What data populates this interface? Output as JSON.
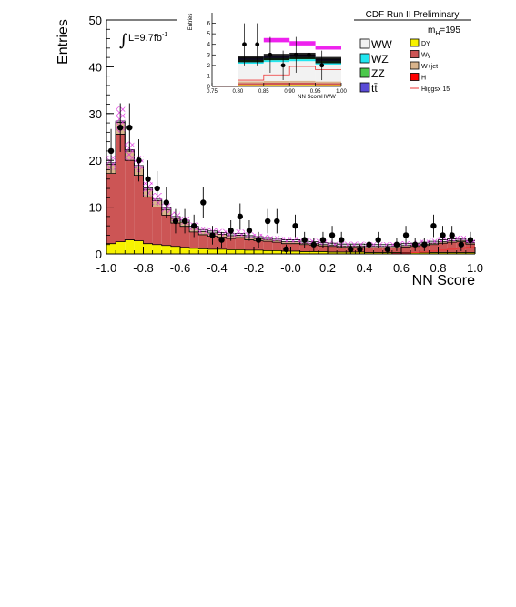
{
  "header": {
    "title": "CDF Run II Preliminary"
  },
  "lumi": {
    "prefix": "L=9.7fb",
    "sup": "-1",
    "integral": "∫"
  },
  "mass": {
    "prefix": "m",
    "sub": "H",
    "suffix": "=195"
  },
  "colors": {
    "WW": "#f2f2f2",
    "WZ": "#22e6f0",
    "ZZ": "#4cc94c",
    "tt": "#5a4bd6",
    "DY": "#f7f200",
    "Wgamma": "#cc5555",
    "Wjet": "#d9b48c",
    "H": "#ff0000",
    "higgs_line": "#ee3333",
    "hatch": "#dd22dd",
    "data": "#000000"
  },
  "legend": {
    "left": [
      {
        "key": "WW",
        "label": "WW"
      },
      {
        "key": "WZ",
        "label": "WZ"
      },
      {
        "key": "ZZ",
        "label": "ZZ"
      },
      {
        "key": "tt",
        "label": "tt̄"
      }
    ],
    "right": [
      {
        "key": "DY",
        "label": "DY"
      },
      {
        "key": "Wgamma",
        "label": "Wγ"
      },
      {
        "key": "Wjet",
        "label": "W+jet"
      },
      {
        "key": "H",
        "label": "H"
      },
      {
        "key": "higgs_line",
        "label": "Higgsx 15"
      }
    ]
  },
  "chart_data": [
    {
      "type": "bar",
      "stacked": true,
      "xlabel": "NN Score",
      "ylabel": "Entries",
      "xlim": [
        -1.0,
        1.0
      ],
      "ylim": [
        0,
        50
      ],
      "x_ticks": [
        "-1.0",
        "-0.8",
        "-0.6",
        "-0.4",
        "-0.2",
        "-0.0",
        "0.2",
        "0.4",
        "0.6",
        "0.8",
        "1.0"
      ],
      "y_ticks": [
        "0",
        "10",
        "20",
        "30",
        "40",
        "50"
      ],
      "bin_edges": [
        -1.0,
        -0.95,
        -0.9,
        -0.85,
        -0.8,
        -0.75,
        -0.7,
        -0.65,
        -0.6,
        -0.55,
        -0.5,
        -0.45,
        -0.4,
        -0.35,
        -0.3,
        -0.25,
        -0.2,
        -0.15,
        -0.1,
        -0.05,
        0.0,
        0.05,
        0.1,
        0.15,
        0.2,
        0.25,
        0.3,
        0.35,
        0.4,
        0.45,
        0.5,
        0.55,
        0.6,
        0.65,
        0.7,
        0.75,
        0.8,
        0.85,
        0.9,
        0.95,
        1.0
      ],
      "series": [
        {
          "name": "DY",
          "values": [
            2.2,
            2.6,
            3.0,
            2.8,
            2.2,
            2.0,
            1.8,
            1.6,
            1.4,
            1.2,
            1.1,
            1.0,
            1.0,
            0.9,
            0.9,
            0.8,
            0.8,
            0.7,
            0.7,
            0.6,
            0.6,
            0.5,
            0.5,
            0.5,
            0.4,
            0.4,
            0.4,
            0.4,
            0.3,
            0.3,
            0.3,
            0.3,
            0.3,
            0.3,
            0.3,
            0.3,
            0.3,
            0.3,
            0.3,
            0.3
          ]
        },
        {
          "name": "Wγ",
          "values": [
            15.0,
            23.0,
            17.0,
            14.0,
            10.0,
            8.0,
            6.5,
            5.0,
            4.5,
            3.5,
            3.0,
            2.8,
            2.6,
            2.4,
            2.6,
            2.2,
            2.0,
            2.0,
            1.8,
            1.6,
            1.6,
            1.5,
            1.4,
            1.2,
            1.2,
            1.0,
            1.0,
            1.0,
            1.0,
            1.0,
            1.0,
            1.0,
            1.2,
            1.3,
            1.5,
            1.7,
            2.0,
            2.2,
            2.3,
            1.8
          ]
        },
        {
          "name": "W+jet",
          "values": [
            2.0,
            2.5,
            2.0,
            1.8,
            1.6,
            1.4,
            1.2,
            1.0,
            0.9,
            0.8,
            0.7,
            0.7,
            0.6,
            0.6,
            0.5,
            0.5,
            0.5,
            0.4,
            0.4,
            0.4,
            0.4,
            0.3,
            0.3,
            0.3,
            0.3,
            0.3,
            0.3,
            0.3,
            0.3,
            0.3,
            0.3,
            0.3,
            0.3,
            0.3,
            0.3,
            0.3,
            0.3,
            0.3,
            0.3,
            0.3
          ]
        },
        {
          "name": "WW",
          "values": [
            0.3,
            0.3,
            0.3,
            0.3,
            0.3,
            0.3,
            0.4,
            0.4,
            0.4,
            0.4,
            0.4,
            0.4,
            0.4,
            0.4,
            0.4,
            0.4,
            0.4,
            0.4,
            0.4,
            0.4,
            0.4,
            0.4,
            0.4,
            0.4,
            0.4,
            0.4,
            0.4,
            0.4,
            0.4,
            0.4,
            0.4,
            0.4,
            0.4,
            0.4,
            0.4,
            0.4,
            0.4,
            0.4,
            0.4,
            0.4
          ]
        }
      ],
      "higgs_x15": [
        0.0,
        0.0,
        0.0,
        0.0,
        0.0,
        0.0,
        0.0,
        0.0,
        0.0,
        0.0,
        0.0,
        0.0,
        0.0,
        0.0,
        0.0,
        0.0,
        0.0,
        0.0,
        0.0,
        0.0,
        0.0,
        0.0,
        0.0,
        0.0,
        0.0,
        0.0,
        0.0,
        0.0,
        0.0,
        0.0,
        0.0,
        0.1,
        0.2,
        0.3,
        0.4,
        0.6,
        0.8,
        1.0,
        1.2,
        1.4
      ],
      "uncertainty_band": [
        [
          18.0,
          21.0
        ],
        [
          26.0,
          31.5
        ],
        [
          20.0,
          24.0
        ],
        [
          17.5,
          21.0
        ],
        [
          12.5,
          15.5
        ],
        [
          10.5,
          13.0
        ],
        [
          8.8,
          10.8
        ],
        [
          7.0,
          9.0
        ],
        [
          6.3,
          8.0
        ],
        [
          5.0,
          6.7
        ],
        [
          4.3,
          5.8
        ],
        [
          4.1,
          5.5
        ],
        [
          3.8,
          5.3
        ],
        [
          3.6,
          5.0
        ],
        [
          3.7,
          5.2
        ],
        [
          3.3,
          4.6
        ],
        [
          3.1,
          4.3
        ],
        [
          2.9,
          4.1
        ],
        [
          2.7,
          3.8
        ],
        [
          2.4,
          3.6
        ],
        [
          2.4,
          3.6
        ],
        [
          2.2,
          3.3
        ],
        [
          2.1,
          3.2
        ],
        [
          1.9,
          3.0
        ],
        [
          1.7,
          2.8
        ],
        [
          1.6,
          2.6
        ],
        [
          1.6,
          2.6
        ],
        [
          1.6,
          2.6
        ],
        [
          1.5,
          2.5
        ],
        [
          1.5,
          2.5
        ],
        [
          1.5,
          2.5
        ],
        [
          1.5,
          2.5
        ],
        [
          1.7,
          2.7
        ],
        [
          1.8,
          2.8
        ],
        [
          2.0,
          3.0
        ],
        [
          2.2,
          3.2
        ],
        [
          2.5,
          3.6
        ],
        [
          2.7,
          3.8
        ],
        [
          2.8,
          3.9
        ],
        [
          2.3,
          3.3
        ]
      ],
      "data_points": [
        {
          "x": -0.975,
          "y": 22,
          "err": 4.7
        },
        {
          "x": -0.925,
          "y": 27,
          "err": 5.2
        },
        {
          "x": -0.875,
          "y": 27,
          "err": 5.2
        },
        {
          "x": -0.825,
          "y": 20,
          "err": 4.5
        },
        {
          "x": -0.775,
          "y": 16,
          "err": 4.0
        },
        {
          "x": -0.725,
          "y": 14,
          "err": 3.7
        },
        {
          "x": -0.675,
          "y": 11,
          "err": 3.3
        },
        {
          "x": -0.625,
          "y": 7,
          "err": 2.6
        },
        {
          "x": -0.575,
          "y": 7,
          "err": 2.6
        },
        {
          "x": -0.525,
          "y": 6,
          "err": 2.4
        },
        {
          "x": -0.475,
          "y": 11,
          "err": 3.3
        },
        {
          "x": -0.425,
          "y": 4,
          "err": 2.0
        },
        {
          "x": -0.375,
          "y": 3,
          "err": 1.7
        },
        {
          "x": -0.325,
          "y": 5,
          "err": 2.2
        },
        {
          "x": -0.275,
          "y": 8,
          "err": 2.8
        },
        {
          "x": -0.225,
          "y": 5,
          "err": 2.2
        },
        {
          "x": -0.175,
          "y": 3,
          "err": 1.7
        },
        {
          "x": -0.125,
          "y": 7,
          "err": 2.6
        },
        {
          "x": -0.075,
          "y": 7,
          "err": 2.6
        },
        {
          "x": -0.025,
          "y": 1,
          "err": 1.0
        },
        {
          "x": 0.025,
          "y": 6,
          "err": 2.4
        },
        {
          "x": 0.075,
          "y": 3,
          "err": 1.7
        },
        {
          "x": 0.125,
          "y": 2,
          "err": 1.4
        },
        {
          "x": 0.175,
          "y": 3,
          "err": 1.7
        },
        {
          "x": 0.225,
          "y": 4,
          "err": 2.0
        },
        {
          "x": 0.275,
          "y": 3,
          "err": 1.7
        },
        {
          "x": 0.325,
          "y": 1,
          "err": 1.0
        },
        {
          "x": 0.375,
          "y": 1,
          "err": 1.0
        },
        {
          "x": 0.425,
          "y": 2,
          "err": 1.4
        },
        {
          "x": 0.475,
          "y": 3,
          "err": 1.7
        },
        {
          "x": 0.525,
          "y": 1,
          "err": 1.0
        },
        {
          "x": 0.575,
          "y": 2,
          "err": 1.4
        },
        {
          "x": 0.625,
          "y": 4,
          "err": 2.0
        },
        {
          "x": 0.675,
          "y": 2,
          "err": 1.4
        },
        {
          "x": 0.725,
          "y": 2,
          "err": 1.4
        },
        {
          "x": 0.775,
          "y": 6,
          "err": 2.4
        },
        {
          "x": 0.825,
          "y": 4,
          "err": 2.0
        },
        {
          "x": 0.875,
          "y": 4,
          "err": 2.0
        },
        {
          "x": 0.925,
          "y": 2,
          "err": 1.4
        },
        {
          "x": 0.975,
          "y": 3,
          "err": 1.7
        }
      ]
    },
    {
      "type": "bar",
      "stacked": true,
      "xlabel": "NN ScoreHWW",
      "ylabel": "Entries",
      "xlim": [
        0.75,
        1.0
      ],
      "ylim": [
        0,
        7
      ],
      "x_ticks": [
        "0.75",
        "0.80",
        "0.85",
        "0.90",
        "0.95",
        "1.00"
      ],
      "y_ticks": [
        "0",
        "1",
        "2",
        "3",
        "4",
        "5",
        "6"
      ],
      "bin_edges": [
        0.75,
        0.8,
        0.85,
        0.9,
        0.95,
        1.0
      ],
      "total_background": [
        0,
        2.7,
        2.9,
        3.0,
        2.6
      ],
      "background_band": [
        [
          0,
          0
        ],
        [
          2.3,
          2.9
        ],
        [
          2.5,
          3.1
        ],
        [
          2.6,
          3.2
        ],
        [
          2.2,
          2.8
        ]
      ],
      "higgs_x15": [
        0,
        0.6,
        1.1,
        1.9,
        1.6
      ],
      "signal_band": [
        [
          0,
          0
        ],
        [
          0,
          0
        ],
        [
          4.2,
          4.6
        ],
        [
          3.9,
          4.3
        ],
        [
          3.5,
          3.8
        ]
      ],
      "data_points": [
        {
          "x": 0.8125,
          "y": 4,
          "err": 2.0
        },
        {
          "x": 0.8375,
          "y": 4,
          "err": 2.0
        },
        {
          "x": 0.8625,
          "y": 3,
          "err": 1.7
        },
        {
          "x": 0.8875,
          "y": 2,
          "err": 1.4
        },
        {
          "x": 0.9125,
          "y": 3,
          "err": 1.7
        },
        {
          "x": 0.9375,
          "y": 3,
          "err": 1.7
        },
        {
          "x": 0.9625,
          "y": 2,
          "err": 1.4
        }
      ]
    }
  ]
}
